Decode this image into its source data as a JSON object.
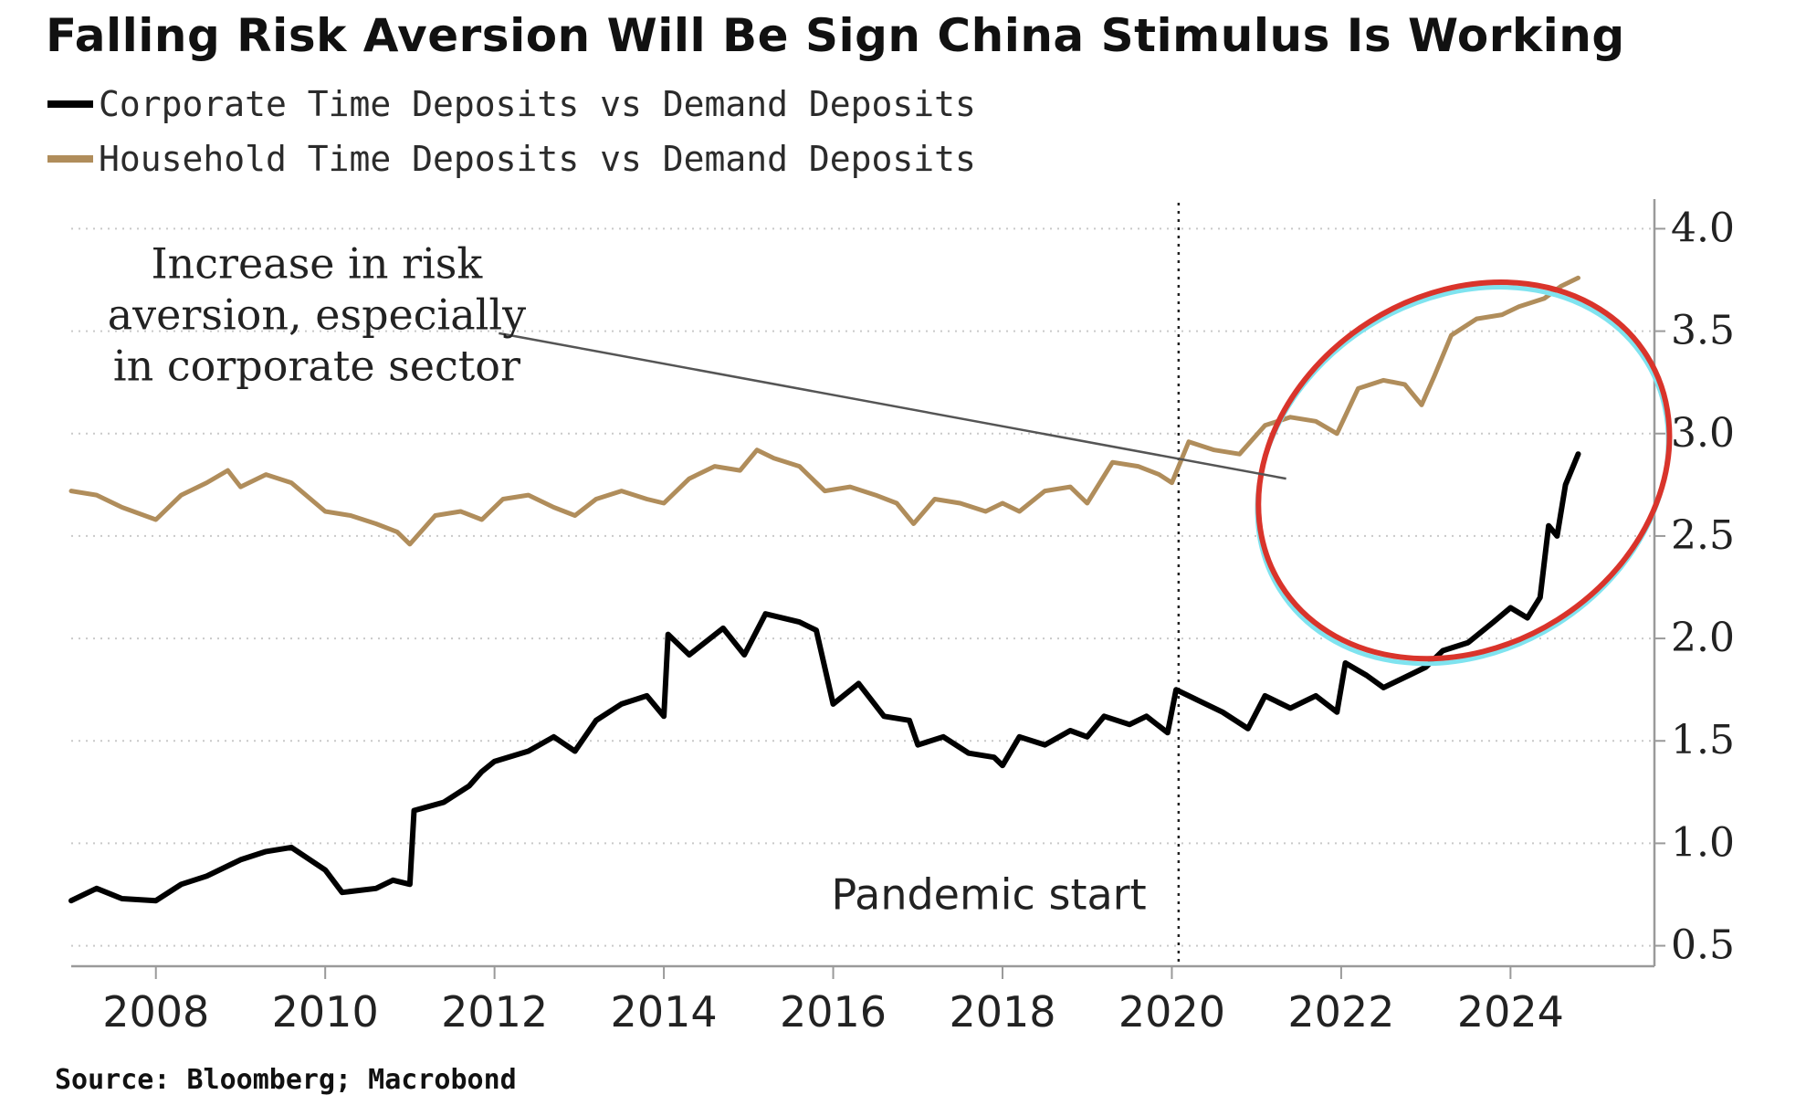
{
  "chart_data": {
    "type": "line",
    "title": "Falling Risk Aversion Will Be Sign China Stimulus Is Working",
    "source": "Source: Bloomberg; Macrobond",
    "xlabel": "",
    "ylabel": "",
    "xlim": [
      2007.0,
      2025.7
    ],
    "ylim": [
      0.4,
      4.1
    ],
    "x_ticks": [
      2008,
      2010,
      2012,
      2014,
      2016,
      2018,
      2020,
      2022,
      2024
    ],
    "y_ticks": [
      0.5,
      1.0,
      1.5,
      2.0,
      2.5,
      3.0,
      3.5,
      4.0
    ],
    "grid": "horizontal dotted",
    "y_axis_side": "right",
    "legend_position": "top-left",
    "series": [
      {
        "name": "Corporate Time Deposits vs Demand Deposits",
        "color": "#000000",
        "points": [
          [
            2007.0,
            0.72
          ],
          [
            2007.3,
            0.78
          ],
          [
            2007.6,
            0.73
          ],
          [
            2008.0,
            0.72
          ],
          [
            2008.3,
            0.8
          ],
          [
            2008.6,
            0.84
          ],
          [
            2009.0,
            0.92
          ],
          [
            2009.3,
            0.96
          ],
          [
            2009.6,
            0.98
          ],
          [
            2010.0,
            0.87
          ],
          [
            2010.2,
            0.76
          ],
          [
            2010.6,
            0.78
          ],
          [
            2010.8,
            0.82
          ],
          [
            2011.0,
            0.8
          ],
          [
            2011.05,
            1.16
          ],
          [
            2011.4,
            1.2
          ],
          [
            2011.7,
            1.28
          ],
          [
            2011.85,
            1.35
          ],
          [
            2012.0,
            1.4
          ],
          [
            2012.4,
            1.45
          ],
          [
            2012.7,
            1.52
          ],
          [
            2012.95,
            1.45
          ],
          [
            2013.2,
            1.6
          ],
          [
            2013.5,
            1.68
          ],
          [
            2013.8,
            1.72
          ],
          [
            2014.0,
            1.62
          ],
          [
            2014.05,
            2.02
          ],
          [
            2014.3,
            1.92
          ],
          [
            2014.7,
            2.05
          ],
          [
            2014.95,
            1.92
          ],
          [
            2015.2,
            2.12
          ],
          [
            2015.6,
            2.08
          ],
          [
            2015.8,
            2.04
          ],
          [
            2016.0,
            1.68
          ],
          [
            2016.3,
            1.78
          ],
          [
            2016.6,
            1.62
          ],
          [
            2016.9,
            1.6
          ],
          [
            2017.0,
            1.48
          ],
          [
            2017.3,
            1.52
          ],
          [
            2017.6,
            1.44
          ],
          [
            2017.9,
            1.42
          ],
          [
            2018.0,
            1.38
          ],
          [
            2018.2,
            1.52
          ],
          [
            2018.5,
            1.48
          ],
          [
            2018.8,
            1.55
          ],
          [
            2019.0,
            1.52
          ],
          [
            2019.2,
            1.62
          ],
          [
            2019.5,
            1.58
          ],
          [
            2019.7,
            1.62
          ],
          [
            2019.95,
            1.54
          ],
          [
            2020.05,
            1.75
          ],
          [
            2020.3,
            1.7
          ],
          [
            2020.6,
            1.64
          ],
          [
            2020.9,
            1.56
          ],
          [
            2021.1,
            1.72
          ],
          [
            2021.4,
            1.66
          ],
          [
            2021.7,
            1.72
          ],
          [
            2021.95,
            1.64
          ],
          [
            2022.05,
            1.88
          ],
          [
            2022.3,
            1.82
          ],
          [
            2022.5,
            1.76
          ],
          [
            2022.8,
            1.82
          ],
          [
            2023.0,
            1.86
          ],
          [
            2023.2,
            1.94
          ],
          [
            2023.5,
            1.98
          ],
          [
            2023.8,
            2.08
          ],
          [
            2024.0,
            2.15
          ],
          [
            2024.2,
            2.1
          ],
          [
            2024.35,
            2.2
          ],
          [
            2024.45,
            2.55
          ],
          [
            2024.55,
            2.5
          ],
          [
            2024.65,
            2.75
          ],
          [
            2024.8,
            2.9
          ]
        ]
      },
      {
        "name": "Household Time Deposits vs Demand Deposits",
        "color": "#b08d5b",
        "points": [
          [
            2007.0,
            2.72
          ],
          [
            2007.3,
            2.7
          ],
          [
            2007.6,
            2.64
          ],
          [
            2008.0,
            2.58
          ],
          [
            2008.3,
            2.7
          ],
          [
            2008.6,
            2.76
          ],
          [
            2008.85,
            2.82
          ],
          [
            2009.0,
            2.74
          ],
          [
            2009.3,
            2.8
          ],
          [
            2009.6,
            2.76
          ],
          [
            2010.0,
            2.62
          ],
          [
            2010.3,
            2.6
          ],
          [
            2010.6,
            2.56
          ],
          [
            2010.85,
            2.52
          ],
          [
            2011.0,
            2.46
          ],
          [
            2011.3,
            2.6
          ],
          [
            2011.6,
            2.62
          ],
          [
            2011.85,
            2.58
          ],
          [
            2012.1,
            2.68
          ],
          [
            2012.4,
            2.7
          ],
          [
            2012.7,
            2.64
          ],
          [
            2012.95,
            2.6
          ],
          [
            2013.2,
            2.68
          ],
          [
            2013.5,
            2.72
          ],
          [
            2013.8,
            2.68
          ],
          [
            2014.0,
            2.66
          ],
          [
            2014.3,
            2.78
          ],
          [
            2014.6,
            2.84
          ],
          [
            2014.9,
            2.82
          ],
          [
            2015.1,
            2.92
          ],
          [
            2015.3,
            2.88
          ],
          [
            2015.6,
            2.84
          ],
          [
            2015.9,
            2.72
          ],
          [
            2016.2,
            2.74
          ],
          [
            2016.5,
            2.7
          ],
          [
            2016.75,
            2.66
          ],
          [
            2016.95,
            2.56
          ],
          [
            2017.2,
            2.68
          ],
          [
            2017.5,
            2.66
          ],
          [
            2017.8,
            2.62
          ],
          [
            2018.0,
            2.66
          ],
          [
            2018.2,
            2.62
          ],
          [
            2018.5,
            2.72
          ],
          [
            2018.8,
            2.74
          ],
          [
            2019.0,
            2.66
          ],
          [
            2019.3,
            2.86
          ],
          [
            2019.6,
            2.84
          ],
          [
            2019.85,
            2.8
          ],
          [
            2020.0,
            2.76
          ],
          [
            2020.2,
            2.96
          ],
          [
            2020.5,
            2.92
          ],
          [
            2020.8,
            2.9
          ],
          [
            2021.1,
            3.04
          ],
          [
            2021.4,
            3.08
          ],
          [
            2021.7,
            3.06
          ],
          [
            2021.95,
            3.0
          ],
          [
            2022.2,
            3.22
          ],
          [
            2022.5,
            3.26
          ],
          [
            2022.75,
            3.24
          ],
          [
            2022.95,
            3.14
          ],
          [
            2023.1,
            3.28
          ],
          [
            2023.3,
            3.48
          ],
          [
            2023.6,
            3.56
          ],
          [
            2023.9,
            3.58
          ],
          [
            2024.1,
            3.62
          ],
          [
            2024.4,
            3.66
          ],
          [
            2024.6,
            3.72
          ],
          [
            2024.8,
            3.76
          ]
        ]
      }
    ],
    "annotations": [
      {
        "id": "risk-aversion",
        "lines": [
          "Increase in risk",
          "aversion, especially",
          "in corporate sector"
        ],
        "text_anchor": [
          2009.9,
          3.51
        ],
        "arrow_from": [
          2012.05,
          3.49
        ],
        "arrow_to": [
          2021.35,
          2.78
        ]
      },
      {
        "id": "pandemic",
        "text": "Pandemic start",
        "text_anchor": [
          2019.7,
          0.75
        ],
        "vline_x": 2020.08
      },
      {
        "id": "highlight-ellipse",
        "center": [
          2023.45,
          2.82
        ],
        "radius": [
          2.55,
          0.86
        ],
        "color": "#d9342b"
      }
    ]
  }
}
